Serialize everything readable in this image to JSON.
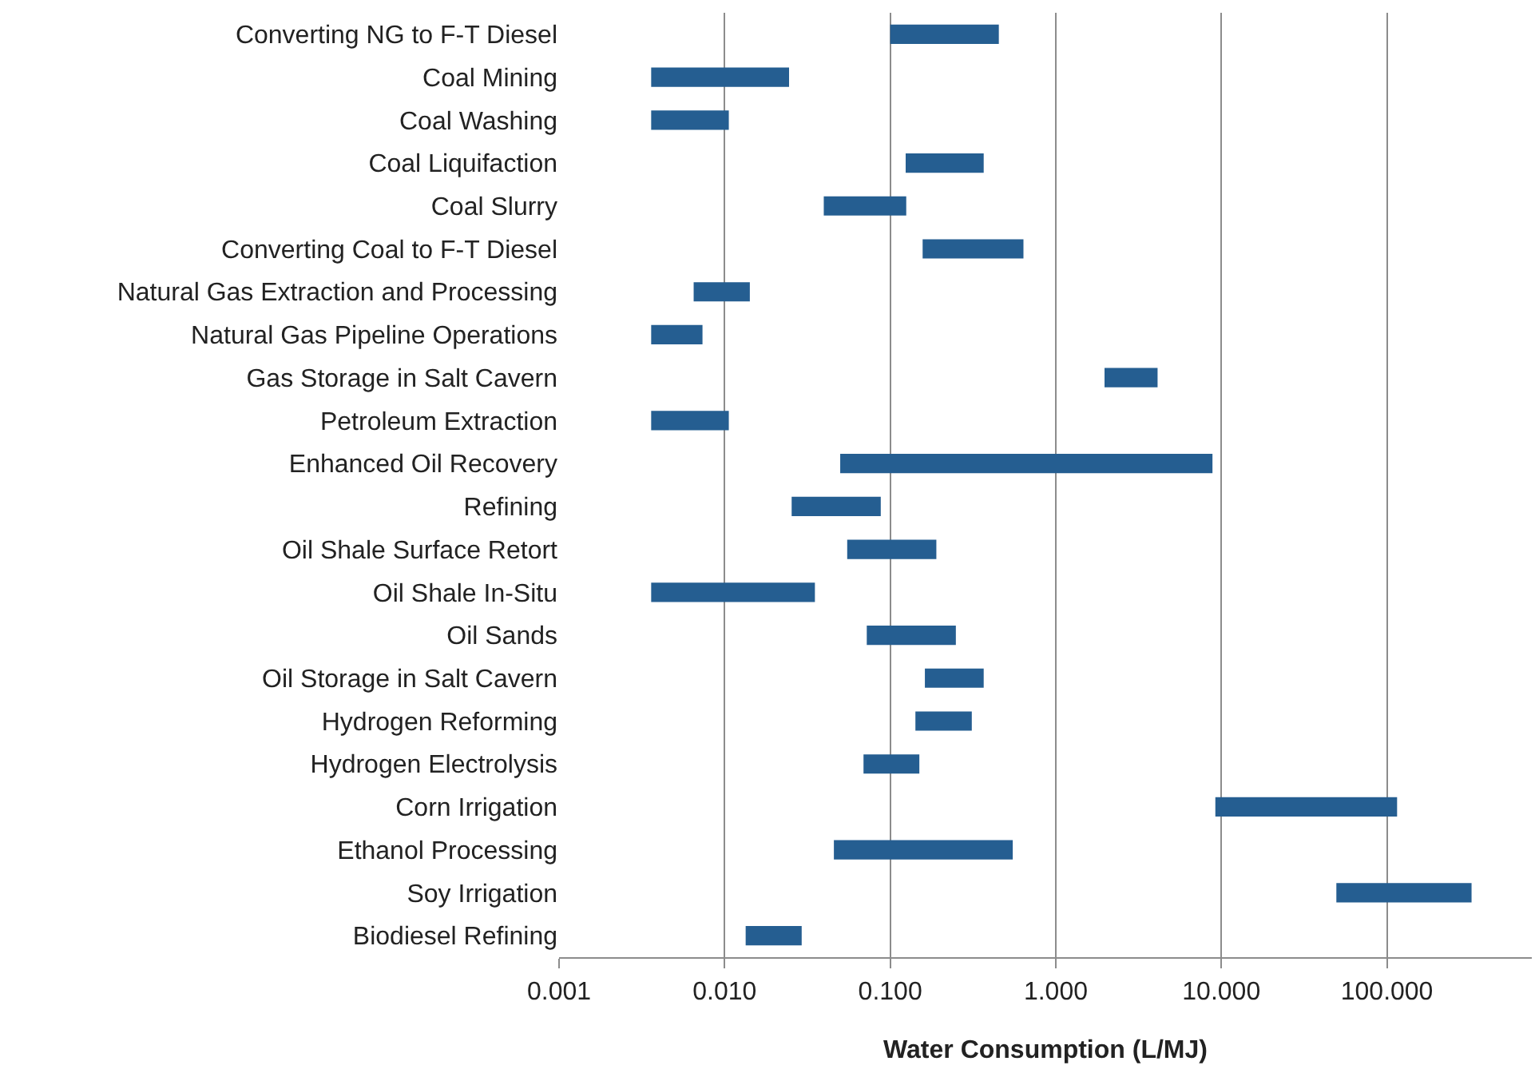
{
  "chart_data": {
    "type": "bar",
    "orientation": "horizontal",
    "xlabel": "Water Consumption (L/MJ)",
    "categories": [
      "Converting NG to F-T Diesel",
      "Coal Mining",
      "Coal Washing",
      "Coal Liquifaction",
      "Coal Slurry",
      "Converting Coal to F-T Diesel",
      "Natural Gas Extraction and Processing",
      "Natural Gas Pipeline Operations",
      "Gas Storage in Salt Cavern",
      "Petroleum Extraction",
      "Enhanced Oil Recovery",
      "Refining",
      "Oil Shale Surface Retort",
      "Oil Shale In-Situ",
      "Oil Sands",
      "Oil Storage in Salt Cavern",
      "Hydrogen Reforming",
      "Hydrogen Electrolysis",
      "Corn Irrigation",
      "Ethanol Processing",
      "Soy Irrigation",
      "Biodiesel Refining"
    ],
    "base": [
      0.1,
      0.0036,
      0.0036,
      0.124,
      0.0397,
      0.157,
      0.0065,
      0.0036,
      1.97,
      0.0036,
      0.0499,
      0.0254,
      0.055,
      0.0036,
      0.0722,
      0.162,
      0.142,
      0.069,
      9.2,
      0.0457,
      49.5,
      0.0134
    ],
    "values": [
      0.353,
      0.0209,
      0.007,
      0.243,
      0.0853,
      0.481,
      0.0077,
      0.00375,
      2.15,
      0.007,
      8.79,
      0.0623,
      0.135,
      0.0315,
      0.177,
      0.205,
      0.169,
      0.081,
      106,
      0.504,
      275,
      0.0158
    ],
    "color": "#255e91",
    "log": "x",
    "xlim": [
      0.001,
      750
    ],
    "xticks": [
      0.001,
      {
        "value": 0.01,
        "label": "0.010"
      },
      {
        "value": 0.1,
        "label": "0.100"
      },
      {
        "value": 1,
        "label": "1.000"
      },
      {
        "value": 10,
        "label": "10.000"
      },
      {
        "value": 100,
        "label": "100.000"
      }
    ],
    "grid": "x"
  }
}
